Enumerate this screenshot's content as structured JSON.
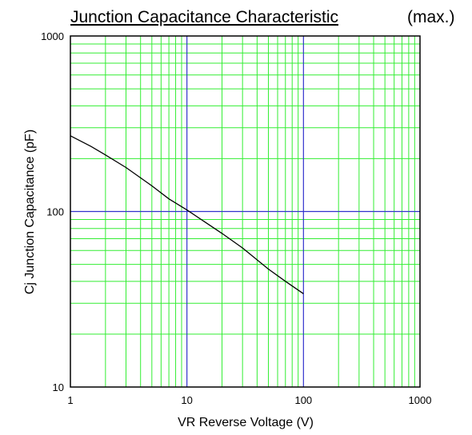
{
  "chart_data": {
    "type": "line",
    "title": "Junction Capacitance Characteristic",
    "subtitle": "(max.)",
    "xlabel": "VR    Reverse Voltage   (V)",
    "ylabel": "Cj    Junction Capacitance   (pF)",
    "x_scale": "log",
    "y_scale": "log",
    "xlim": [
      1,
      1000
    ],
    "ylim": [
      10,
      1000
    ],
    "x_ticks": [
      "1",
      "10",
      "100",
      "1000"
    ],
    "y_ticks": [
      "10",
      "100",
      "1000"
    ],
    "grid": true,
    "colors": {
      "minor_grid": "#33ee33",
      "major_grid": "#3333cc",
      "line": "#000000"
    },
    "series": [
      {
        "x": [
          1,
          1.5,
          2,
          3,
          5,
          7,
          10,
          20,
          30,
          50,
          70,
          100
        ],
        "y": [
          270,
          235,
          210,
          178,
          140,
          118,
          102,
          75,
          62,
          47,
          40,
          34
        ]
      }
    ]
  }
}
